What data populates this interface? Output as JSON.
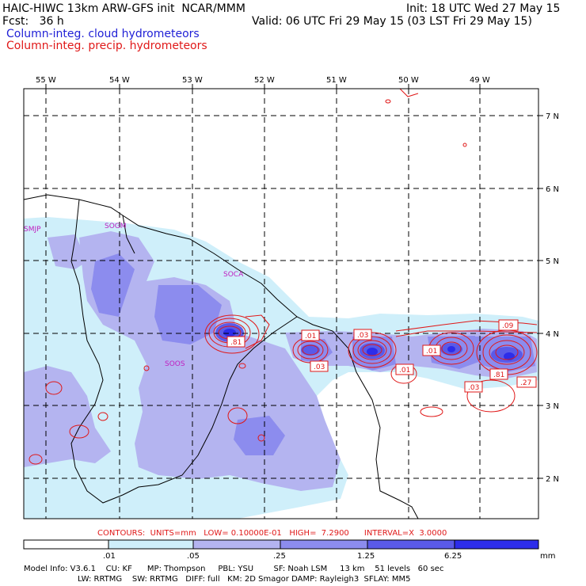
{
  "header": {
    "title_left": "HAIC-HIWC 13km ARW-GFS init  NCAR/MMM",
    "init": "Init: 18 UTC Wed 27 May 15",
    "fcst": "Fcst:   36 h",
    "valid": "Valid: 06 UTC Fri 29 May 15 (03 LST Fri 29 May 15)",
    "field_cloud": "Column-integ. cloud hydrometeors",
    "field_precip": "Column-integ. precip. hydrometeors"
  },
  "map": {
    "lon_labels": [
      "55 W",
      "54 W",
      "53 W",
      "52 W",
      "51 W",
      "50 W",
      "49 W"
    ],
    "lat_labels": [
      "7 N",
      "6 N",
      "5 N",
      "4 N",
      "3 N",
      "2 N"
    ],
    "stations": [
      "SMJP",
      "SOGM",
      "SOCA",
      "SOOS"
    ],
    "contour_labels": [
      ".81",
      ".01",
      ".03",
      ".03",
      ".01",
      ".01",
      ".09",
      ".81",
      ".03",
      ".27"
    ]
  },
  "contour_info": "CONTOURS:  UNITS=mm   LOW= 0.10000E-01   HIGH=  7.2900      INTERVAL=X  3.0000",
  "colorbar": {
    "ticks": [
      ".01",
      ".05",
      ".25",
      "1.25",
      "6.25"
    ],
    "units": "mm",
    "colors": [
      "#ffffff",
      "#cfeffa",
      "#b4b4f0",
      "#8c8cee",
      "#5a5ae8",
      "#2d2dea"
    ]
  },
  "model_info": {
    "line1": "Model Info: V3.6.1    CU: KF      MP: Thompson     PBL: YSU        SF: Noah LSM     13 km    51 levels   60 sec",
    "line2": "LW: RRTMG    SW: RRTMG   DIFF: full   KM: 2D Smagor DAMP: Rayleigh3  SFLAY: MM5"
  },
  "colors": {
    "cloud_light": "#cfeffa",
    "cloud_mid": "#b4b4f0",
    "cloud_dark": "#8c8cee",
    "cloud_deep": "#5a5ae8",
    "precip_contour": "#e01818",
    "station": "#c020c0"
  }
}
